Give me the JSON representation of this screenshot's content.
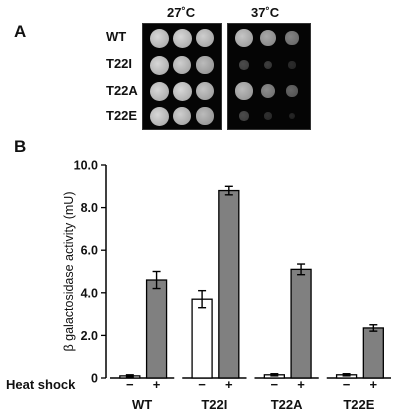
{
  "panel_a": {
    "letter": "A",
    "temperatures": [
      "27˚C",
      "37˚C"
    ],
    "strains": [
      "WT",
      "T22I",
      "T22A",
      "T22E"
    ],
    "growth": [
      [
        [
          1.0,
          1.0,
          0.95
        ],
        [
          0.9,
          0.75,
          0.55
        ]
      ],
      [
        [
          1.0,
          0.95,
          0.85
        ],
        [
          0.25,
          0.18,
          0.08
        ]
      ],
      [
        [
          1.0,
          1.0,
          0.9
        ],
        [
          0.85,
          0.6,
          0.4
        ]
      ],
      [
        [
          1.0,
          0.95,
          0.85
        ],
        [
          0.25,
          0.1,
          0.05
        ]
      ]
    ]
  },
  "panel_b": {
    "letter": "B",
    "row_label": "Heat shock",
    "condition_labels": [
      "−",
      "+"
    ]
  },
  "chart_data": {
    "type": "bar",
    "ylabel": "β galactosidase activity (mU)",
    "ylim": [
      0,
      10.0
    ],
    "yticks": [
      "0",
      "2.0",
      "4.0",
      "6.0",
      "8.0",
      "10.0"
    ],
    "categories": [
      "WT",
      "T22I",
      "T22A",
      "T22E"
    ],
    "series": [
      {
        "condition": "−",
        "color": "#ffffff",
        "values": [
          0.1,
          3.7,
          0.15,
          0.15
        ],
        "errors": [
          0.05,
          0.4,
          0.05,
          0.05
        ]
      },
      {
        "condition": "+",
        "color": "#808080",
        "values": [
          4.6,
          8.8,
          5.1,
          2.35
        ],
        "errors": [
          0.4,
          0.2,
          0.25,
          0.15
        ]
      }
    ]
  }
}
